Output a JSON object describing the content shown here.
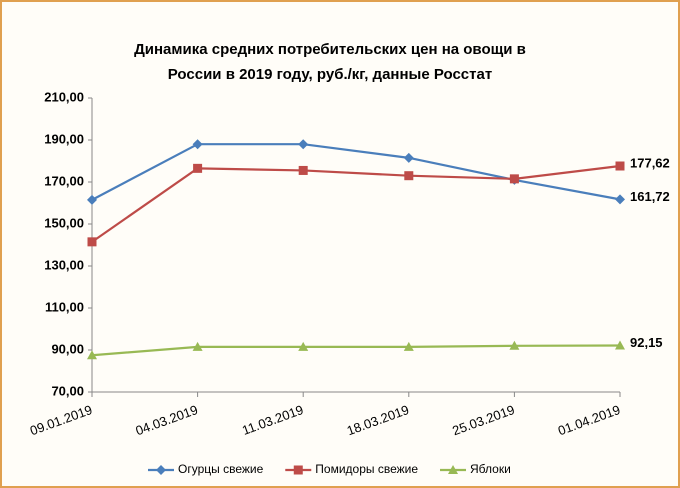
{
  "chart_data": {
    "type": "line",
    "title": [
      "Динамика средних потребительских цен на овощи в",
      "России в 2019 году, руб./кг, данные Росстат"
    ],
    "categories": [
      "09.01.2019",
      "04.03.2019",
      "11.03.2019",
      "18.03.2019",
      "25.03.2019",
      "01.04.2019"
    ],
    "series": [
      {
        "name": "Огурцы свежие",
        "color": "#4a7ebb",
        "marker": "diamond",
        "values": [
          161.5,
          188,
          188,
          181.5,
          171,
          161.72
        ],
        "value_labels": [
          null,
          null,
          null,
          null,
          null,
          "161,72"
        ]
      },
      {
        "name": "Помидоры свежие",
        "color": "#be4b48",
        "marker": "square",
        "values": [
          141.5,
          176.5,
          175.5,
          173,
          171.5,
          177.62
        ],
        "value_labels": [
          null,
          null,
          null,
          null,
          null,
          "177,62"
        ]
      },
      {
        "name": "Яблоки",
        "color": "#98b954",
        "marker": "triangle",
        "values": [
          87.5,
          91.5,
          91.5,
          91.5,
          92,
          92.15
        ],
        "value_labels": [
          null,
          null,
          null,
          null,
          null,
          "92,15"
        ]
      }
    ],
    "ylim": [
      70,
      210
    ],
    "yticks": [
      {
        "value": 70,
        "label": "70,00"
      },
      {
        "value": 90,
        "label": "90,00"
      },
      {
        "value": 110,
        "label": "110,00"
      },
      {
        "value": 130,
        "label": "130,00"
      },
      {
        "value": 150,
        "label": "150,00"
      },
      {
        "value": 170,
        "label": "170,00"
      },
      {
        "value": 190,
        "label": "190,00"
      },
      {
        "value": 210,
        "label": "210,00"
      }
    ],
    "grid": false,
    "legend": "bottom"
  }
}
